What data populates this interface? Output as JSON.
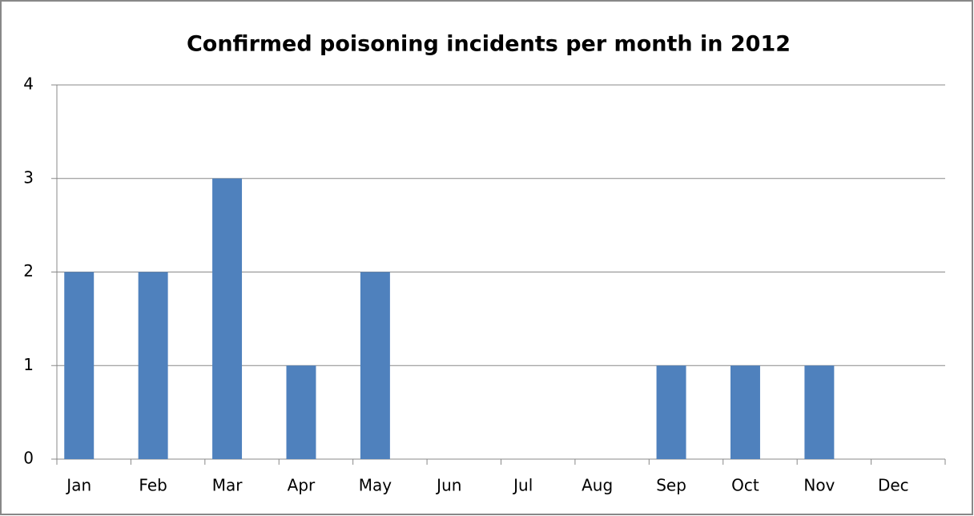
{
  "chart_data": {
    "type": "bar",
    "title": "Confirmed poisoning incidents per month in 2012",
    "categories": [
      "Jan",
      "Feb",
      "Mar",
      "Apr",
      "May",
      "Jun",
      "Jul",
      "Aug",
      "Sep",
      "Oct",
      "Nov",
      "Dec"
    ],
    "values": [
      2,
      2,
      3,
      1,
      2,
      0,
      0,
      0,
      1,
      1,
      1,
      0
    ],
    "color": "#4f81bd",
    "ylim": [
      0,
      4
    ],
    "yticks": [
      0,
      1,
      2,
      3,
      4
    ],
    "grid": true
  }
}
